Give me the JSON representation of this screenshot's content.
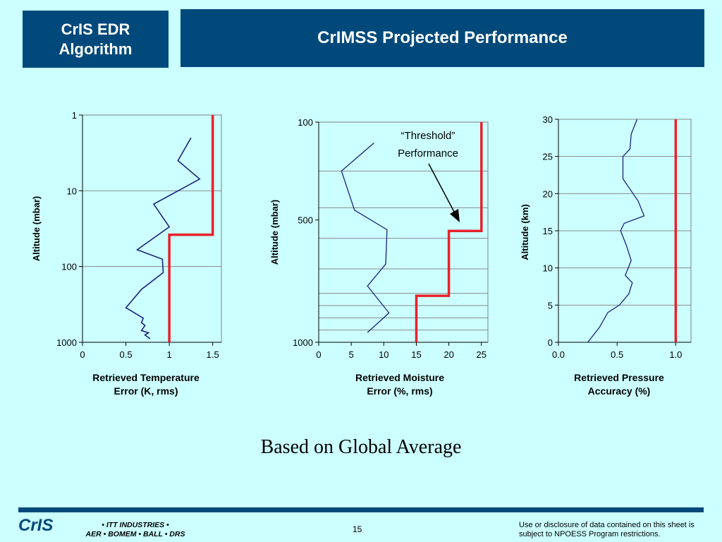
{
  "header": {
    "left_line1": "CrIS EDR",
    "left_line2": "Algorithm",
    "title": "CrIMSS Projected Performance"
  },
  "subtitle": "Based on Global Average",
  "annotation": {
    "line1": "“Threshold”",
    "line2": "Performance"
  },
  "chart_data": [
    {
      "type": "line",
      "ylabel": "Altitude (mbar)",
      "xlabel_line1": "Retrieved Temperature",
      "xlabel_line2": "Error (K, rms)",
      "xlim": [
        0,
        1.6
      ],
      "ylim": [
        1,
        1000
      ],
      "yscale": "log",
      "y_inverted": true,
      "xticks": [
        {
          "v": 0,
          "label": "0"
        },
        {
          "v": 0.5,
          "label": "0.5"
        },
        {
          "v": 1,
          "label": "1"
        },
        {
          "v": 1.5,
          "label": "1.5"
        }
      ],
      "yticks": [
        {
          "v": 1,
          "label": "1"
        },
        {
          "v": 10,
          "label": "10"
        },
        {
          "v": 100,
          "label": "100"
        },
        {
          "v": 1000,
          "label": "1000"
        }
      ],
      "gridlines_y": [
        10,
        100
      ],
      "series": [
        {
          "color": "#1a237e",
          "width": 1.6,
          "x": [
            1.25,
            1.1,
            1.35,
            0.82,
            1.0,
            0.63,
            0.92,
            0.93,
            0.68,
            0.5,
            0.7,
            0.68,
            0.72,
            0.68,
            0.76,
            0.72,
            0.78
          ],
          "y": [
            2,
            4,
            7,
            15,
            30,
            60,
            80,
            120,
            200,
            350,
            480,
            550,
            600,
            700,
            750,
            800,
            900
          ]
        },
        {
          "color": "#e8212a",
          "width": 3.5,
          "x": [
            1.5,
            1.5,
            1.0,
            1.0
          ],
          "y": [
            1,
            38,
            38,
            1000
          ]
        }
      ]
    },
    {
      "type": "line",
      "ylabel": "Altitude (mbar)",
      "xlabel_line1": "Retrieved Moisture",
      "xlabel_line2": "Error (%, rms)",
      "xlim": [
        0,
        26
      ],
      "ylim": [
        100,
        1000
      ],
      "yscale": "linear",
      "y_inverted": true,
      "xticks": [
        {
          "v": 0,
          "label": "0"
        },
        {
          "v": 5,
          "label": "5"
        },
        {
          "v": 10,
          "label": "10"
        },
        {
          "v": 15,
          "label": "15"
        },
        {
          "v": 20,
          "label": "20"
        },
        {
          "v": 25,
          "label": "25"
        }
      ],
      "yticks": [
        {
          "v": 100,
          "label": "100"
        },
        {
          "v": 500,
          "label": "500"
        },
        {
          "v": 1000,
          "label": "1000"
        }
      ],
      "gridlines_y": [
        300,
        450,
        575,
        700,
        800,
        850,
        900,
        950
      ],
      "series": [
        {
          "color": "#1a237e",
          "width": 1.3,
          "x": [
            8.5,
            3.5,
            5.5,
            10.5,
            10.3,
            7.5,
            10.8,
            7.5
          ],
          "y": [
            185,
            300,
            460,
            540,
            680,
            770,
            880,
            960
          ]
        },
        {
          "color": "#e8212a",
          "width": 3.5,
          "x": [
            25,
            25,
            20,
            20,
            15,
            15
          ],
          "y": [
            100,
            545,
            545,
            810,
            810,
            1000
          ]
        }
      ]
    },
    {
      "type": "line",
      "ylabel": "Altitude (km)",
      "xlabel_line1": "Retrieved Pressure",
      "xlabel_line2": "Accuracy (%)",
      "xlim": [
        0,
        1.13
      ],
      "ylim": [
        0,
        30
      ],
      "yscale": "linear",
      "y_inverted": false,
      "xticks": [
        {
          "v": 0,
          "label": "0.0"
        },
        {
          "v": 0.5,
          "label": "0.5"
        },
        {
          "v": 1.0,
          "label": "1.0"
        }
      ],
      "yticks": [
        {
          "v": 0,
          "label": "0"
        },
        {
          "v": 5,
          "label": "5"
        },
        {
          "v": 10,
          "label": "10"
        },
        {
          "v": 15,
          "label": "15"
        },
        {
          "v": 20,
          "label": "20"
        },
        {
          "v": 25,
          "label": "25"
        },
        {
          "v": 30,
          "label": "30"
        }
      ],
      "gridlines_y": [
        5,
        10,
        15,
        20,
        25,
        30
      ],
      "series": [
        {
          "color": "#1a237e",
          "width": 1.3,
          "x": [
            0.25,
            0.35,
            0.42,
            0.52,
            0.6,
            0.63,
            0.57,
            0.62,
            0.58,
            0.53,
            0.56,
            0.73,
            0.68,
            0.55,
            0.55,
            0.61,
            0.62,
            0.67
          ],
          "y": [
            0,
            2,
            4,
            5,
            6.5,
            8,
            9,
            11,
            13,
            15,
            16,
            17,
            19,
            22,
            25,
            26,
            28,
            30
          ]
        },
        {
          "color": "#e8212a",
          "width": 3.5,
          "x": [
            1.0,
            1.0
          ],
          "y": [
            0,
            30
          ]
        }
      ]
    }
  ],
  "footer": {
    "logo": "CrIS",
    "partners_line1": "• ITT INDUSTRIES •",
    "partners_line2": "AER • BOMEM • BALL • DRS",
    "page": "15",
    "notice_line1": "Use or disclosure of data contained on this sheet is",
    "notice_line2": "subject to NPOESS Program restrictions."
  }
}
